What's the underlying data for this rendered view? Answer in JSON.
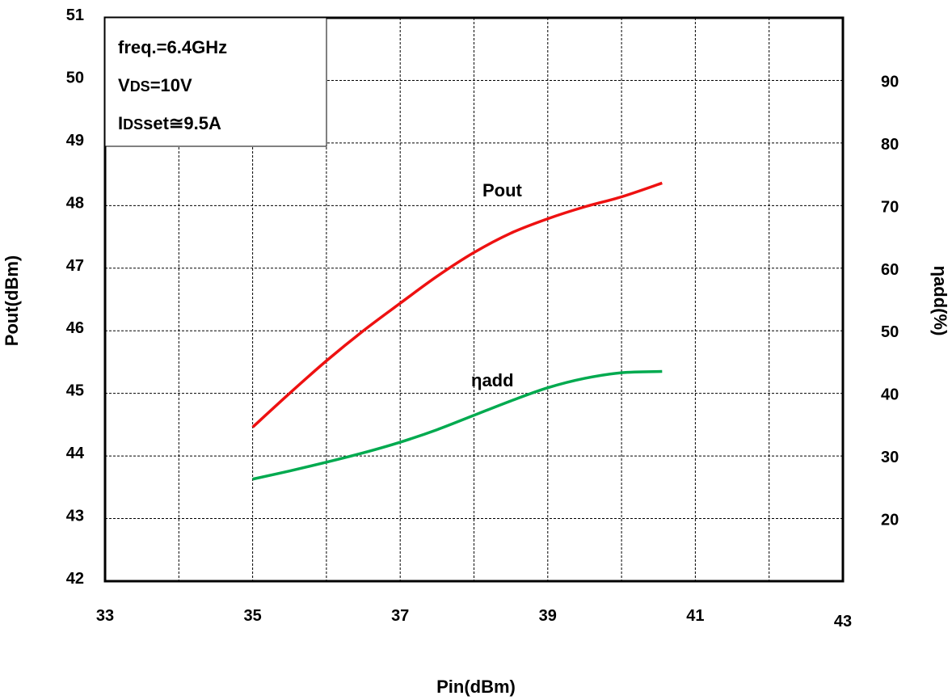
{
  "chart_data": {
    "type": "line",
    "xlabel": "Pin(dBm)",
    "ylabel_left": "Pout(dBm)",
    "ylabel_right": "ηadd(%)",
    "xlim": [
      33,
      43
    ],
    "ylim_left": [
      42,
      51
    ],
    "ylim_right": [
      10,
      100
    ],
    "x_ticks": [
      "33",
      "35",
      "37",
      "39",
      "41",
      "43"
    ],
    "y_left_ticks": [
      "42",
      "43",
      "44",
      "45",
      "46",
      "47",
      "48",
      "49",
      "50",
      "51"
    ],
    "y_right_ticks": [
      "20",
      "30",
      "40",
      "50",
      "60",
      "70",
      "80",
      "90"
    ],
    "grid": true,
    "series": [
      {
        "name": "Pout",
        "axis": "left",
        "color": "#ee1111",
        "x": [
          35,
          35.5,
          36,
          36.5,
          37,
          37.5,
          38,
          38.5,
          39,
          39.5,
          40,
          40.55
        ],
        "y": [
          44.46,
          45.0,
          45.52,
          46.0,
          46.44,
          46.87,
          47.25,
          47.56,
          47.79,
          47.98,
          48.14,
          48.36
        ]
      },
      {
        "name": "ηadd",
        "axis": "right",
        "color": "#00aa4f",
        "x": [
          35,
          35.5,
          36,
          36.5,
          37,
          37.5,
          38,
          38.5,
          39,
          39.5,
          40,
          40.55
        ],
        "y": [
          26.3,
          27.6,
          29.0,
          30.5,
          32.2,
          34.2,
          36.5,
          38.8,
          40.9,
          42.4,
          43.3,
          43.5
        ]
      }
    ],
    "annotations": {
      "line1": "freq.=6.4GHz",
      "line2_prefix": "V",
      "line2_sub": "DS",
      "line2_rest": "=10V",
      "line3_prefix": "I",
      "line3_sub": "DS",
      "line3_rest": "set≅9.5A"
    }
  }
}
